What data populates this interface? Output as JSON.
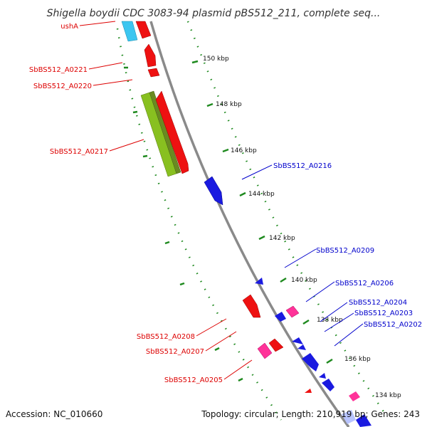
{
  "title": "Shigella boydii CDC 3083-94 plasmid pBS512_211, complete seq...",
  "footer": {
    "accession": "Accession: NC_010660",
    "summary": "Topology: circular; Length: 210,919 bp; Genes: 243"
  },
  "colors": {
    "backbone": "#8a8a8a",
    "tick_marks": "#1f8a1f",
    "forward_gene": "#ee1111",
    "reverse_gene": "#1a1ae0",
    "cyan_feature": "#3cc6f0",
    "pink_feature": "#ff3399",
    "green_feature": "#88c020",
    "red_label": "#dd0000",
    "blue_label": "#0000cc"
  },
  "kbp_labels": [
    {
      "name": "kbp-150",
      "text": "150 kbp"
    },
    {
      "name": "kbp-148",
      "text": "148 kbp"
    },
    {
      "name": "kbp-146",
      "text": "146 kbp"
    },
    {
      "name": "kbp-144",
      "text": "144 kbp"
    },
    {
      "name": "kbp-142",
      "text": "142 kbp"
    },
    {
      "name": "kbp-140",
      "text": "140 kbp"
    },
    {
      "name": "kbp-138",
      "text": "138 kbp"
    },
    {
      "name": "kbp-136",
      "text": "136 kbp"
    },
    {
      "name": "kbp-134",
      "text": "134 kbp"
    }
  ],
  "gene_labels": [
    {
      "name": "gene-label-usha",
      "text": "ushA",
      "strand": "forward"
    },
    {
      "name": "gene-label-a0221",
      "text": "SbBS512_A0221",
      "strand": "forward"
    },
    {
      "name": "gene-label-a0220",
      "text": "SbBS512_A0220",
      "strand": "forward"
    },
    {
      "name": "gene-label-a0217",
      "text": "SbBS512_A0217",
      "strand": "forward"
    },
    {
      "name": "gene-label-a0216",
      "text": "SbBS512_A0216",
      "strand": "reverse"
    },
    {
      "name": "gene-label-a0209",
      "text": "SbBS512_A0209",
      "strand": "reverse"
    },
    {
      "name": "gene-label-a0206",
      "text": "SbBS512_A0206",
      "strand": "reverse"
    },
    {
      "name": "gene-label-a0204",
      "text": "SbBS512_A0204",
      "strand": "reverse"
    },
    {
      "name": "gene-label-a0203",
      "text": "SbBS512_A0203",
      "strand": "reverse"
    },
    {
      "name": "gene-label-a0202",
      "text": "SbBS512_A0202",
      "strand": "reverse"
    },
    {
      "name": "gene-label-a0208",
      "text": "SbBS512_A0208",
      "strand": "forward"
    },
    {
      "name": "gene-label-a0207",
      "text": "SbBS512_A0207",
      "strand": "forward"
    },
    {
      "name": "gene-label-a0205",
      "text": "SbBS512_A0205",
      "strand": "forward"
    }
  ]
}
